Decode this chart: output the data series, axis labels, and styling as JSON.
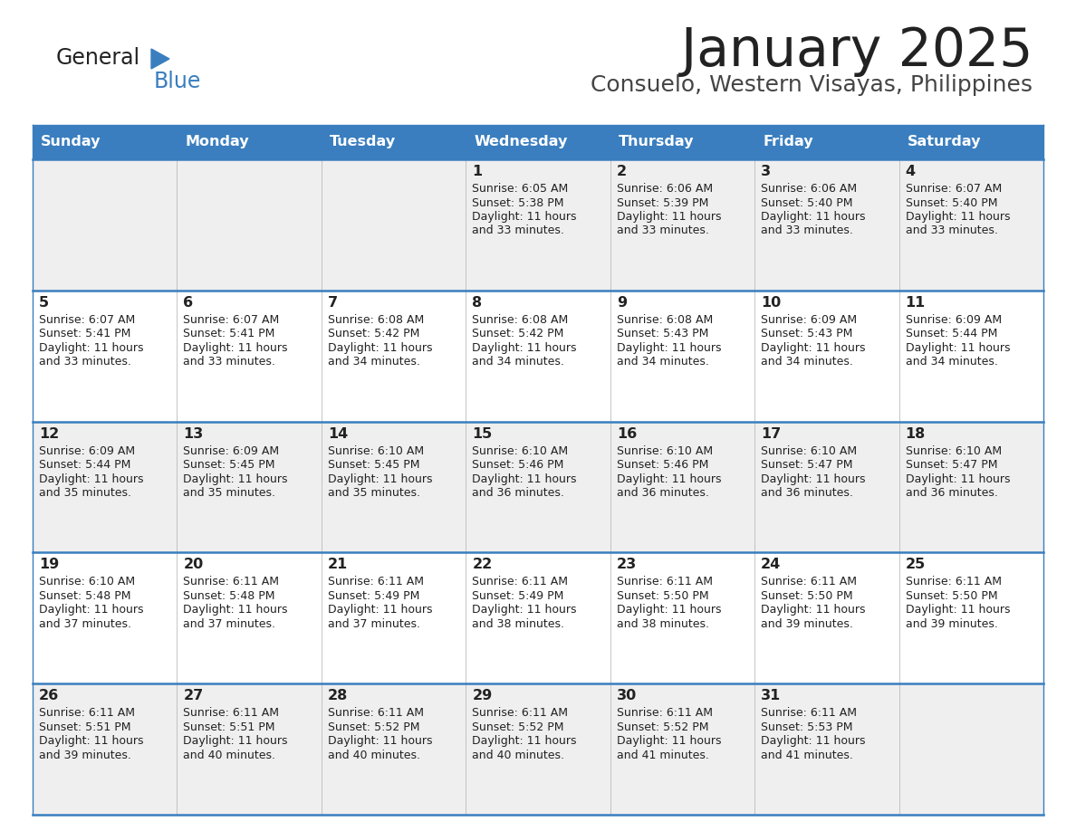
{
  "title": "January 2025",
  "subtitle": "Consuelo, Western Visayas, Philippines",
  "days_of_week": [
    "Sunday",
    "Monday",
    "Tuesday",
    "Wednesday",
    "Thursday",
    "Friday",
    "Saturday"
  ],
  "header_bg": "#3a7ebf",
  "header_text": "#ffffff",
  "row_bg_odd": "#efefef",
  "row_bg_even": "#ffffff",
  "day_num_color": "#222222",
  "info_color": "#222222",
  "border_color": "#3a7ebf",
  "title_color": "#222222",
  "subtitle_color": "#444444",
  "logo_general_color": "#222222",
  "logo_blue_color": "#3a7ebf",
  "calendar_data": [
    [
      null,
      null,
      null,
      {
        "day": 1,
        "sunrise": "6:05 AM",
        "sunset": "5:38 PM",
        "daylight": "11 hours and 33 minutes."
      },
      {
        "day": 2,
        "sunrise": "6:06 AM",
        "sunset": "5:39 PM",
        "daylight": "11 hours and 33 minutes."
      },
      {
        "day": 3,
        "sunrise": "6:06 AM",
        "sunset": "5:40 PM",
        "daylight": "11 hours and 33 minutes."
      },
      {
        "day": 4,
        "sunrise": "6:07 AM",
        "sunset": "5:40 PM",
        "daylight": "11 hours and 33 minutes."
      }
    ],
    [
      {
        "day": 5,
        "sunrise": "6:07 AM",
        "sunset": "5:41 PM",
        "daylight": "11 hours and 33 minutes."
      },
      {
        "day": 6,
        "sunrise": "6:07 AM",
        "sunset": "5:41 PM",
        "daylight": "11 hours and 33 minutes."
      },
      {
        "day": 7,
        "sunrise": "6:08 AM",
        "sunset": "5:42 PM",
        "daylight": "11 hours and 34 minutes."
      },
      {
        "day": 8,
        "sunrise": "6:08 AM",
        "sunset": "5:42 PM",
        "daylight": "11 hours and 34 minutes."
      },
      {
        "day": 9,
        "sunrise": "6:08 AM",
        "sunset": "5:43 PM",
        "daylight": "11 hours and 34 minutes."
      },
      {
        "day": 10,
        "sunrise": "6:09 AM",
        "sunset": "5:43 PM",
        "daylight": "11 hours and 34 minutes."
      },
      {
        "day": 11,
        "sunrise": "6:09 AM",
        "sunset": "5:44 PM",
        "daylight": "11 hours and 34 minutes."
      }
    ],
    [
      {
        "day": 12,
        "sunrise": "6:09 AM",
        "sunset": "5:44 PM",
        "daylight": "11 hours and 35 minutes."
      },
      {
        "day": 13,
        "sunrise": "6:09 AM",
        "sunset": "5:45 PM",
        "daylight": "11 hours and 35 minutes."
      },
      {
        "day": 14,
        "sunrise": "6:10 AM",
        "sunset": "5:45 PM",
        "daylight": "11 hours and 35 minutes."
      },
      {
        "day": 15,
        "sunrise": "6:10 AM",
        "sunset": "5:46 PM",
        "daylight": "11 hours and 36 minutes."
      },
      {
        "day": 16,
        "sunrise": "6:10 AM",
        "sunset": "5:46 PM",
        "daylight": "11 hours and 36 minutes."
      },
      {
        "day": 17,
        "sunrise": "6:10 AM",
        "sunset": "5:47 PM",
        "daylight": "11 hours and 36 minutes."
      },
      {
        "day": 18,
        "sunrise": "6:10 AM",
        "sunset": "5:47 PM",
        "daylight": "11 hours and 36 minutes."
      }
    ],
    [
      {
        "day": 19,
        "sunrise": "6:10 AM",
        "sunset": "5:48 PM",
        "daylight": "11 hours and 37 minutes."
      },
      {
        "day": 20,
        "sunrise": "6:11 AM",
        "sunset": "5:48 PM",
        "daylight": "11 hours and 37 minutes."
      },
      {
        "day": 21,
        "sunrise": "6:11 AM",
        "sunset": "5:49 PM",
        "daylight": "11 hours and 37 minutes."
      },
      {
        "day": 22,
        "sunrise": "6:11 AM",
        "sunset": "5:49 PM",
        "daylight": "11 hours and 38 minutes."
      },
      {
        "day": 23,
        "sunrise": "6:11 AM",
        "sunset": "5:50 PM",
        "daylight": "11 hours and 38 minutes."
      },
      {
        "day": 24,
        "sunrise": "6:11 AM",
        "sunset": "5:50 PM",
        "daylight": "11 hours and 39 minutes."
      },
      {
        "day": 25,
        "sunrise": "6:11 AM",
        "sunset": "5:50 PM",
        "daylight": "11 hours and 39 minutes."
      }
    ],
    [
      {
        "day": 26,
        "sunrise": "6:11 AM",
        "sunset": "5:51 PM",
        "daylight": "11 hours and 39 minutes."
      },
      {
        "day": 27,
        "sunrise": "6:11 AM",
        "sunset": "5:51 PM",
        "daylight": "11 hours and 40 minutes."
      },
      {
        "day": 28,
        "sunrise": "6:11 AM",
        "sunset": "5:52 PM",
        "daylight": "11 hours and 40 minutes."
      },
      {
        "day": 29,
        "sunrise": "6:11 AM",
        "sunset": "5:52 PM",
        "daylight": "11 hours and 40 minutes."
      },
      {
        "day": 30,
        "sunrise": "6:11 AM",
        "sunset": "5:52 PM",
        "daylight": "11 hours and 41 minutes."
      },
      {
        "day": 31,
        "sunrise": "6:11 AM",
        "sunset": "5:53 PM",
        "daylight": "11 hours and 41 minutes."
      },
      null
    ]
  ]
}
